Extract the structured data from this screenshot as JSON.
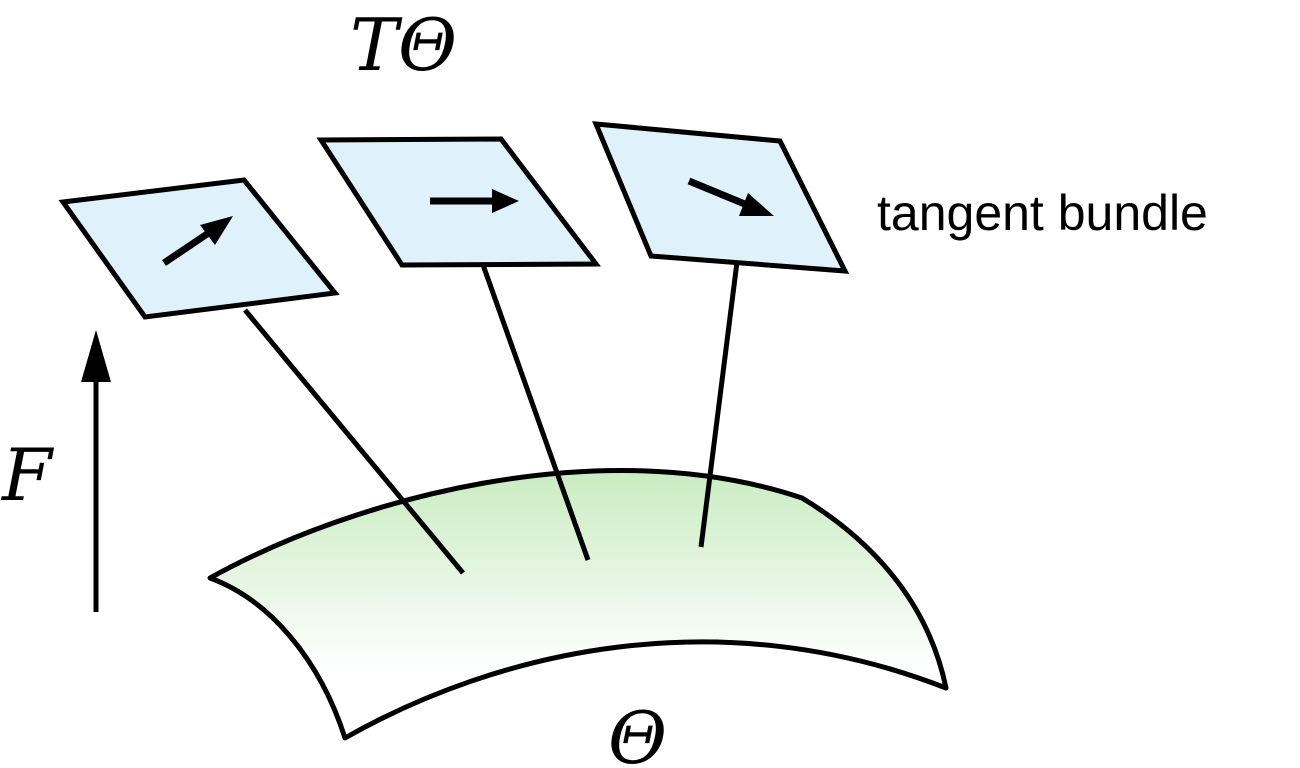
{
  "labels": {
    "bundle_symbol": "TΘ",
    "bundle_caption": "tangent bundle",
    "map_symbol": "F",
    "manifold_symbol": "Θ"
  },
  "colors": {
    "stroke": "#000000",
    "tangent_plane_fill": "#dff1fb",
    "manifold_fill_top": "#c9ecc1",
    "manifold_fill_bottom": "#ffffff",
    "background": "#ffffff"
  },
  "tangent_planes": [
    {
      "id": "left",
      "vector_direction": "up-right"
    },
    {
      "id": "middle",
      "vector_direction": "right"
    },
    {
      "id": "right",
      "vector_direction": "down-right"
    }
  ]
}
